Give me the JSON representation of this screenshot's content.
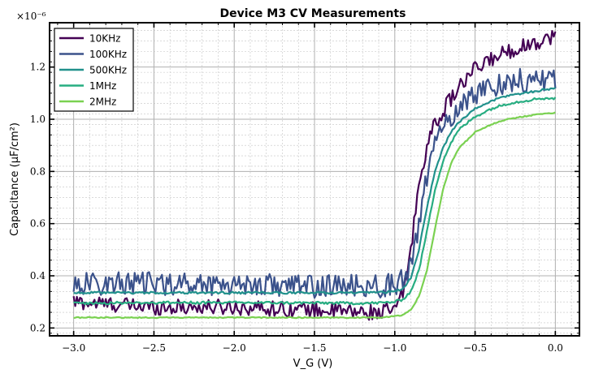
{
  "chart_data": {
    "type": "line",
    "title": "Device M3 CV Measurements",
    "xlabel": "V_G (V)",
    "ylabel": "Capacitance (μF/cm²)",
    "y_multiplier": "×10⁻⁶",
    "xlim": [
      -3.15,
      0.15
    ],
    "ylim": [
      0.17,
      1.37
    ],
    "x_ticks": [
      -3.0,
      -2.5,
      -2.0,
      -1.5,
      -1.0,
      -0.5,
      0.0
    ],
    "x_tick_labels": [
      "−3.0",
      "−2.5",
      "−2.0",
      "−1.5",
      "−1.0",
      "−0.5",
      "0.0"
    ],
    "y_ticks": [
      0.2,
      0.4,
      0.6,
      0.8,
      1.0,
      1.2
    ],
    "y_tick_labels": [
      "0.2",
      "0.4",
      "0.6",
      "0.8",
      "1.0",
      "1.2"
    ],
    "grid": true,
    "legend_position": "top-left",
    "x": [
      -3.0,
      -2.5,
      -2.0,
      -1.5,
      -1.2,
      -1.1,
      -1.0,
      -0.95,
      -0.9,
      -0.85,
      -0.8,
      -0.75,
      -0.7,
      -0.65,
      -0.6,
      -0.5,
      -0.4,
      -0.3,
      -0.2,
      -0.1,
      0.0
    ],
    "series": [
      {
        "name": "10KHz",
        "color": "#440154",
        "noise": 0.03,
        "values": [
          0.3,
          0.28,
          0.28,
          0.27,
          0.26,
          0.26,
          0.27,
          0.33,
          0.5,
          0.75,
          0.9,
          0.98,
          1.03,
          1.08,
          1.12,
          1.19,
          1.23,
          1.26,
          1.28,
          1.3,
          1.32
        ]
      },
      {
        "name": "100KHz",
        "color": "#3b528b",
        "noise": 0.045,
        "values": [
          0.37,
          0.37,
          0.37,
          0.36,
          0.36,
          0.36,
          0.37,
          0.38,
          0.43,
          0.6,
          0.78,
          0.9,
          0.96,
          1.01,
          1.05,
          1.1,
          1.13,
          1.14,
          1.15,
          1.15,
          1.16
        ]
      },
      {
        "name": "500KHz",
        "color": "#21918c",
        "noise": 0.004,
        "values": [
          0.335,
          0.335,
          0.335,
          0.335,
          0.335,
          0.336,
          0.34,
          0.35,
          0.39,
          0.5,
          0.66,
          0.8,
          0.89,
          0.95,
          0.99,
          1.04,
          1.07,
          1.09,
          1.1,
          1.11,
          1.12
        ]
      },
      {
        "name": "1MHz",
        "color": "#27ad81",
        "noise": 0.005,
        "values": [
          0.295,
          0.297,
          0.297,
          0.296,
          0.295,
          0.296,
          0.3,
          0.31,
          0.34,
          0.42,
          0.57,
          0.73,
          0.84,
          0.91,
          0.96,
          1.01,
          1.04,
          1.06,
          1.07,
          1.08,
          1.08
        ]
      },
      {
        "name": "2MHz",
        "color": "#7ad151",
        "noise": 0.002,
        "values": [
          0.24,
          0.24,
          0.24,
          0.24,
          0.24,
          0.24,
          0.245,
          0.25,
          0.27,
          0.32,
          0.42,
          0.58,
          0.73,
          0.83,
          0.89,
          0.95,
          0.98,
          1.0,
          1.01,
          1.02,
          1.025
        ]
      }
    ]
  }
}
